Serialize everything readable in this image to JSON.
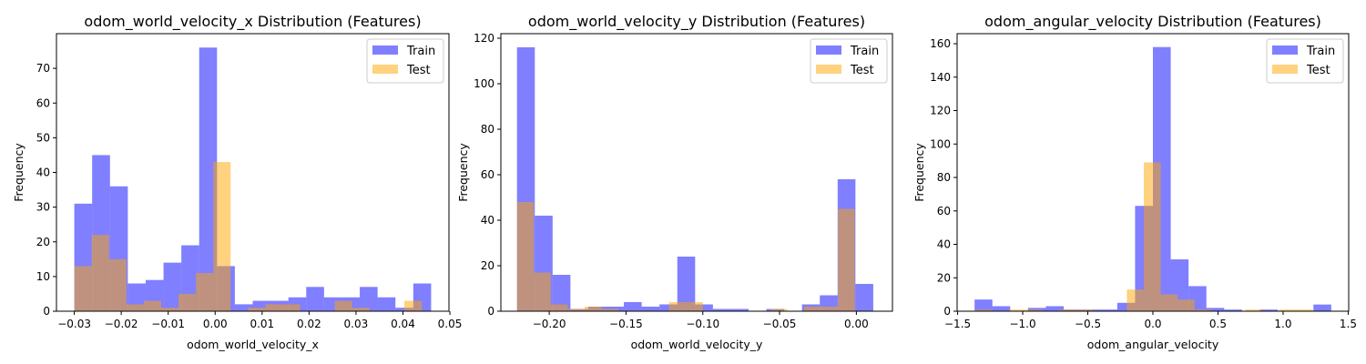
{
  "chart_data": [
    {
      "type": "histogram",
      "title": "odom_world_velocity_x Distribution (Features)",
      "xlabel": "odom_world_velocity_x",
      "ylabel": "Frequency",
      "xlim": [
        -0.0338,
        0.0498
      ],
      "ylim": [
        0,
        80
      ],
      "xticks": [
        -0.03,
        -0.02,
        -0.01,
        0.0,
        0.01,
        0.02,
        0.03,
        0.04,
        0.05
      ],
      "xtick_labels": [
        "−0.03",
        "−0.02",
        "−0.01",
        "0.00",
        "0.01",
        "0.02",
        "0.03",
        "0.04",
        "0.05"
      ],
      "yticks": [
        0,
        10,
        20,
        30,
        40,
        50,
        60,
        70
      ],
      "ytick_labels": [
        "0",
        "10",
        "20",
        "30",
        "40",
        "50",
        "60",
        "70"
      ],
      "legend_position": "top-right",
      "series": [
        {
          "name": "Train",
          "color": "#0000ff",
          "opacity": 0.5,
          "bin_edges": [
            -0.03,
            -0.0262,
            -0.0224,
            -0.0186,
            -0.0148,
            -0.011,
            -0.0072,
            -0.0034,
            0.0004,
            0.0042,
            0.008,
            0.0118,
            0.0156,
            0.0194,
            0.0232,
            0.027,
            0.0308,
            0.0346,
            0.0384,
            0.0422,
            0.046
          ],
          "counts": [
            31,
            45,
            36,
            8,
            9,
            14,
            19,
            76,
            13,
            2,
            3,
            3,
            4,
            7,
            4,
            4,
            7,
            4,
            1,
            8
          ]
        },
        {
          "name": "Test",
          "color": "#ffa500",
          "opacity": 0.5,
          "bin_edges": [
            -0.03,
            -0.0263,
            -0.0226,
            -0.0189,
            -0.0152,
            -0.0115,
            -0.0078,
            -0.0041,
            -0.0004,
            0.0033,
            0.007,
            0.0107,
            0.0144,
            0.0181,
            0.0218,
            0.0255,
            0.0292,
            0.0329,
            0.0366,
            0.0403,
            0.044
          ],
          "counts": [
            13,
            22,
            15,
            2,
            3,
            1,
            5,
            11,
            43,
            0,
            1,
            2,
            2,
            0,
            0,
            3,
            1,
            0,
            0,
            3
          ]
        }
      ]
    },
    {
      "type": "histogram",
      "title": "odom_world_velocity_y Distribution (Features)",
      "xlabel": "odom_world_velocity_y",
      "ylabel": "Frequency",
      "xlim": [
        -0.2315,
        0.0235
      ],
      "ylim": [
        0,
        122
      ],
      "xticks": [
        -0.2,
        -0.15,
        -0.1,
        -0.05,
        0.0
      ],
      "xtick_labels": [
        "−0.20",
        "−0.15",
        "−0.10",
        "−0.05",
        "0.00"
      ],
      "yticks": [
        0,
        20,
        40,
        60,
        80,
        100,
        120
      ],
      "ytick_labels": [
        "0",
        "20",
        "40",
        "60",
        "80",
        "100",
        "120"
      ],
      "legend_position": "top-right",
      "series": [
        {
          "name": "Train",
          "color": "#0000ff",
          "opacity": 0.5,
          "bin_edges": [
            -0.221,
            -0.2094,
            -0.1978,
            -0.1862,
            -0.1746,
            -0.163,
            -0.1514,
            -0.1398,
            -0.1282,
            -0.1166,
            -0.105,
            -0.0934,
            -0.0818,
            -0.0702,
            -0.0586,
            -0.047,
            -0.0354,
            -0.0238,
            -0.0122,
            -0.0006,
            0.011
          ],
          "counts": [
            116,
            42,
            16,
            1,
            2,
            2,
            4,
            2,
            3,
            24,
            3,
            1,
            1,
            0,
            1,
            0,
            3,
            7,
            58,
            12
          ]
        },
        {
          "name": "Test",
          "color": "#ffa500",
          "opacity": 0.5,
          "bin_edges": [
            -0.221,
            -0.21,
            -0.199,
            -0.188,
            -0.177,
            -0.166,
            -0.155,
            -0.144,
            -0.133,
            -0.122,
            -0.111,
            -0.1,
            -0.089,
            -0.078,
            -0.067,
            -0.056,
            -0.045,
            -0.034,
            -0.023,
            -0.012,
            -0.001
          ],
          "counts": [
            48,
            17,
            3,
            1,
            2,
            1,
            0,
            0,
            0,
            4,
            4,
            0,
            0,
            0,
            0,
            1,
            0,
            2,
            2,
            45
          ]
        }
      ]
    },
    {
      "type": "histogram",
      "title": "odom_angular_velocity Distribution (Features)",
      "xlabel": "odom_angular_velocity",
      "ylabel": "Frequency",
      "xlim": [
        -1.504,
        1.504
      ],
      "ylim": [
        0,
        166
      ],
      "xticks": [
        -1.5,
        -1.0,
        -0.5,
        0.0,
        0.5,
        1.0,
        1.5
      ],
      "xtick_labels": [
        "−1.5",
        "−1.0",
        "−0.5",
        "0.0",
        "0.5",
        "1.0",
        "1.5"
      ],
      "yticks": [
        0,
        20,
        40,
        60,
        80,
        100,
        120,
        140,
        160
      ],
      "ytick_labels": [
        "0",
        "20",
        "40",
        "60",
        "80",
        "100",
        "120",
        "140",
        "160"
      ],
      "legend_position": "top-right",
      "series": [
        {
          "name": "Train",
          "color": "#0000ff",
          "opacity": 0.5,
          "bin_edges": [
            -1.37,
            -1.233,
            -1.096,
            -0.959,
            -0.822,
            -0.685,
            -0.548,
            -0.411,
            -0.274,
            -0.137,
            0.0,
            0.137,
            0.274,
            0.411,
            0.548,
            0.685,
            0.822,
            0.959,
            1.096,
            1.233,
            1.37
          ],
          "counts": [
            7,
            3,
            0,
            2,
            3,
            1,
            1,
            1,
            5,
            63,
            158,
            31,
            15,
            2,
            1,
            0,
            1,
            0,
            0,
            4
          ]
        },
        {
          "name": "Test",
          "color": "#ffa500",
          "opacity": 0.5,
          "bin_edges": [
            -1.37,
            -1.24,
            -1.11,
            -0.98,
            -0.85,
            -0.72,
            -0.59,
            -0.46,
            -0.33,
            -0.2,
            -0.07,
            0.06,
            0.19,
            0.32,
            0.45,
            0.58,
            0.71,
            0.84,
            0.97,
            1.1,
            1.23
          ],
          "counts": [
            1,
            0,
            1,
            1,
            0,
            1,
            1,
            0,
            0,
            13,
            89,
            10,
            7,
            1,
            0,
            0,
            1,
            0,
            1,
            1
          ]
        }
      ]
    }
  ]
}
